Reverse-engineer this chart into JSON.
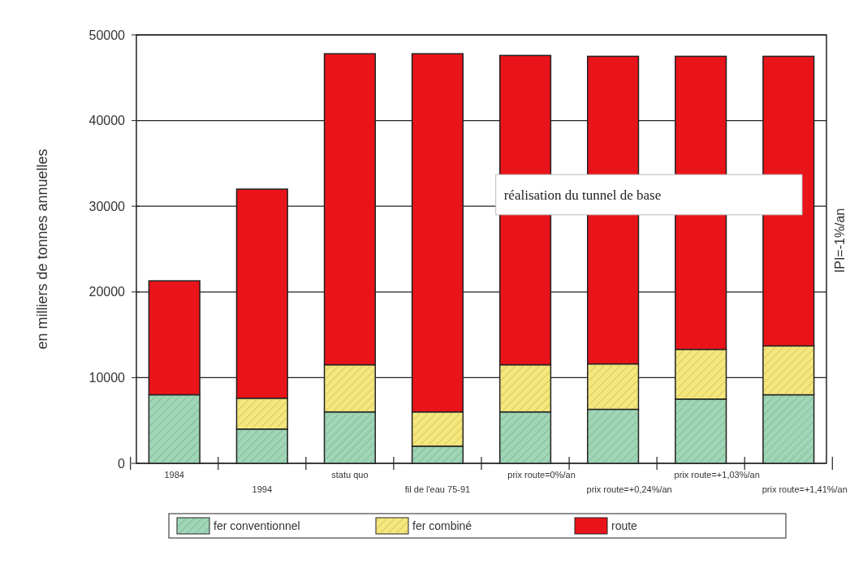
{
  "chart_data": {
    "type": "bar",
    "stacked": true,
    "ylabel": "en milliers de tonnes annuelles",
    "categories": [
      "1984",
      "1994",
      "statu quo",
      "fil de l'eau 75-91",
      "prix route=0%/an",
      "prix route=+0,24%/an",
      "prix route=+1,03%/an",
      "prix route=+1,41%/an"
    ],
    "series": [
      {
        "name": "fer conventionnel",
        "color": "#9fd6b6",
        "values": [
          8000,
          4000,
          6000,
          2000,
          6000,
          6300,
          7500,
          8000
        ]
      },
      {
        "name": "fer combiné",
        "color": "#f6e77c",
        "values": [
          0,
          3600,
          5500,
          4000,
          5500,
          5300,
          5800,
          5700
        ]
      },
      {
        "name": "route",
        "color": "#e8141a",
        "values": [
          13300,
          24400,
          36300,
          41800,
          36100,
          35900,
          34200,
          33800
        ]
      }
    ],
    "ylim": [
      0,
      50000
    ],
    "yticks": [
      0,
      10000,
      20000,
      30000,
      40000,
      50000
    ],
    "grid": "y",
    "legend": "bottom",
    "annotations": [
      "réalisation du tunnel de base",
      "IPI=-1%/an"
    ]
  }
}
